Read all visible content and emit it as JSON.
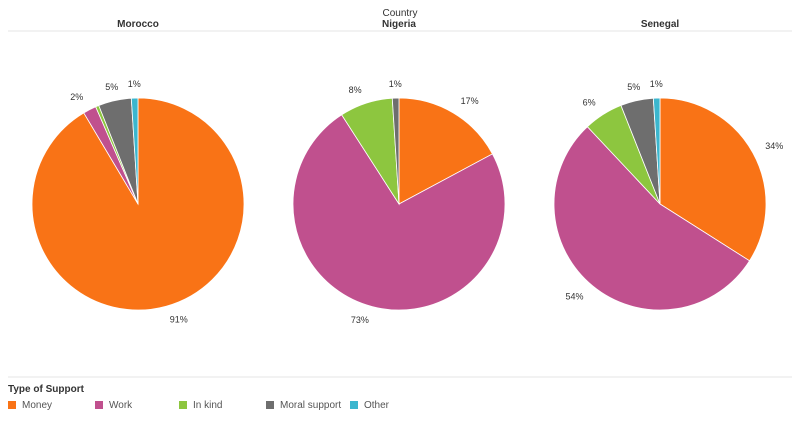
{
  "header": {
    "field_label": "Country"
  },
  "chart_data": {
    "type": "pie",
    "facet_label": "Country",
    "categories": [
      "Money",
      "Work",
      "In kind",
      "Moral support",
      "Other"
    ],
    "colors": [
      "#F97316",
      "#C0508E",
      "#8DC63F",
      "#6E6E6E",
      "#3BB6CE"
    ],
    "panels": [
      {
        "name": "Morocco",
        "values": [
          91,
          2,
          0.5,
          5,
          1
        ],
        "labels": [
          "91%",
          "2%",
          "",
          "5%",
          "1%"
        ]
      },
      {
        "name": "Nigeria",
        "values": [
          17,
          73,
          8,
          1,
          0
        ],
        "labels": [
          "17%",
          "73%",
          "8%",
          "1%",
          ""
        ]
      },
      {
        "name": "Senegal",
        "values": [
          34,
          54,
          6,
          5,
          1
        ],
        "labels": [
          "34%",
          "54%",
          "6%",
          "5%",
          "1%"
        ]
      }
    ]
  },
  "legend": {
    "title": "Type of Support",
    "items": [
      {
        "label": "Money",
        "color": "#F97316"
      },
      {
        "label": "Work",
        "color": "#C0508E"
      },
      {
        "label": "In kind",
        "color": "#8DC63F"
      },
      {
        "label": "Moral support",
        "color": "#6E6E6E"
      },
      {
        "label": "Other",
        "color": "#3BB6CE"
      }
    ]
  }
}
